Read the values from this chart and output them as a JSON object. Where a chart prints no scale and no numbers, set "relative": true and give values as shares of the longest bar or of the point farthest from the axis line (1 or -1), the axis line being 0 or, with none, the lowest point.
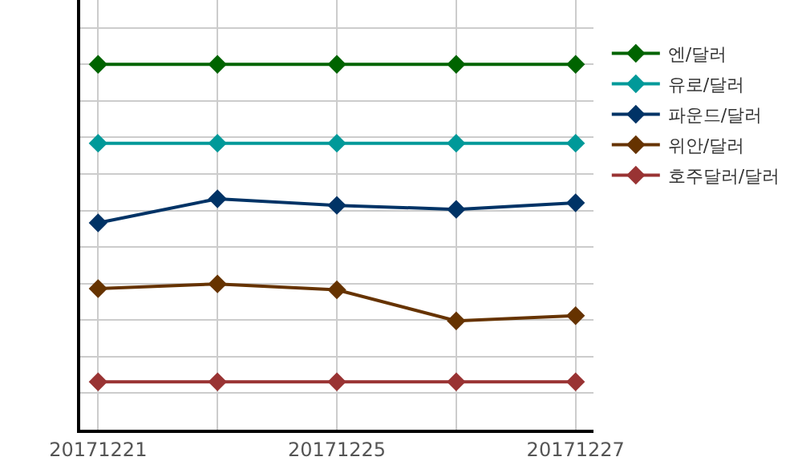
{
  "chart_data": {
    "type": "line",
    "relative": true,
    "categories": [
      "20171221",
      null,
      "20171225",
      null,
      "20171227"
    ],
    "series": [
      {
        "name": "엔/달러",
        "color": "#006400",
        "values": [
          1,
          1,
          1,
          1,
          1
        ]
      },
      {
        "name": "유로/달러",
        "color": "#009999",
        "values": [
          0.784,
          0.784,
          0.784,
          0.784,
          0.784
        ]
      },
      {
        "name": "파운드/달러",
        "color": "#003366",
        "values": [
          0.566,
          0.632,
          0.614,
          0.603,
          0.621
        ]
      },
      {
        "name": "위안/달러",
        "color": "#663300",
        "values": [
          0.386,
          0.399,
          0.383,
          0.298,
          0.312
        ]
      },
      {
        "name": "호주달러/달러",
        "color": "#993333",
        "values": [
          0.131,
          0.131,
          0.131,
          0.131,
          0.131
        ]
      }
    ],
    "grid": true,
    "legend": "top right",
    "marker": "diamond",
    "line_style": "solid"
  }
}
